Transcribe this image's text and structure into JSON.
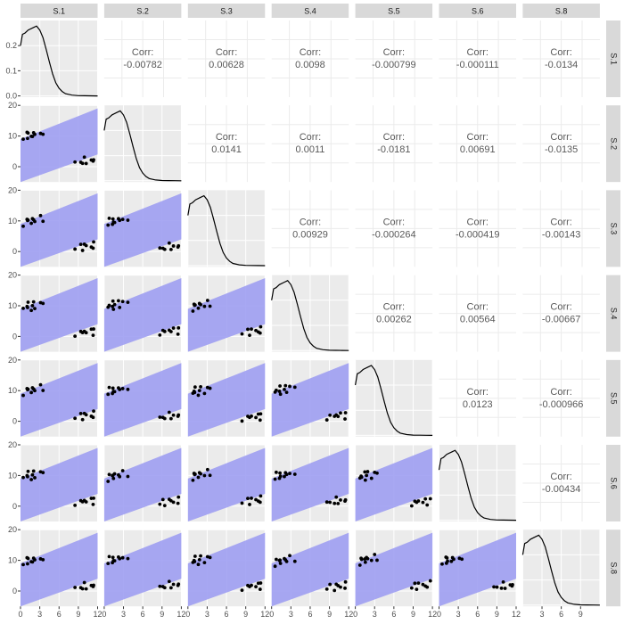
{
  "chart_data": {
    "type": "scatter-matrix",
    "variables": [
      "S.1",
      "S.2",
      "S.3",
      "S.4",
      "S.5",
      "S.6",
      "S.8"
    ],
    "corr_label": "Corr:",
    "correlations": [
      {
        "row": "S.1",
        "col": "S.2",
        "value": "-0.00782"
      },
      {
        "row": "S.1",
        "col": "S.3",
        "value": "0.00628"
      },
      {
        "row": "S.1",
        "col": "S.4",
        "value": "0.0098"
      },
      {
        "row": "S.1",
        "col": "S.5",
        "value": "-0.000799"
      },
      {
        "row": "S.1",
        "col": "S.6",
        "value": "-0.000111"
      },
      {
        "row": "S.1",
        "col": "S.8",
        "value": "-0.0134"
      },
      {
        "row": "S.2",
        "col": "S.3",
        "value": "0.0141"
      },
      {
        "row": "S.2",
        "col": "S.4",
        "value": "0.0011"
      },
      {
        "row": "S.2",
        "col": "S.5",
        "value": "-0.0181"
      },
      {
        "row": "S.2",
        "col": "S.6",
        "value": "0.00691"
      },
      {
        "row": "S.2",
        "col": "S.8",
        "value": "-0.0135"
      },
      {
        "row": "S.3",
        "col": "S.4",
        "value": "0.00929"
      },
      {
        "row": "S.3",
        "col": "S.5",
        "value": "-0.000264"
      },
      {
        "row": "S.3",
        "col": "S.6",
        "value": "-0.000419"
      },
      {
        "row": "S.3",
        "col": "S.8",
        "value": "-0.00143"
      },
      {
        "row": "S.4",
        "col": "S.5",
        "value": "0.00262"
      },
      {
        "row": "S.4",
        "col": "S.6",
        "value": "0.00564"
      },
      {
        "row": "S.4",
        "col": "S.8",
        "value": "-0.00667"
      },
      {
        "row": "S.5",
        "col": "S.6",
        "value": "0.0123"
      },
      {
        "row": "S.5",
        "col": "S.8",
        "value": "-0.000966"
      },
      {
        "row": "S.6",
        "col": "S.8",
        "value": "-0.00434"
      }
    ],
    "x_ticks": [
      "0",
      "3",
      "6",
      "9",
      "12"
    ],
    "x_tick_values": [
      0,
      3,
      6,
      9,
      12
    ],
    "x_ticks_last": [
      "3",
      "6",
      "9"
    ],
    "x_tick_values_last": [
      3,
      6,
      9
    ],
    "y_ticks": [
      "0",
      "10",
      "20"
    ],
    "y_tick_values": [
      0,
      10,
      20
    ],
    "y_ticks_density": [
      "0.0",
      "0.1",
      "0.2"
    ],
    "y_tick_values_density": [
      0.0,
      0.1,
      0.2
    ],
    "xlim": [
      0,
      12
    ],
    "ylim": [
      -5,
      20
    ],
    "density_ylim": [
      -0.005,
      0.3
    ],
    "band": {
      "lower": [
        [
          0,
          -5
        ],
        [
          12,
          4
        ]
      ],
      "upper": [
        [
          0,
          9
        ],
        [
          12,
          19
        ]
      ]
    },
    "band_color": "#9f9ff2",
    "density_curve": [
      [
        0.0,
        0.2
      ],
      [
        0.3,
        0.245
      ],
      [
        0.7,
        0.25
      ],
      [
        1.2,
        0.262
      ],
      [
        2.0,
        0.272
      ],
      [
        2.5,
        0.278
      ],
      [
        3.0,
        0.262
      ],
      [
        3.5,
        0.232
      ],
      [
        4.0,
        0.185
      ],
      [
        4.5,
        0.135
      ],
      [
        5.0,
        0.088
      ],
      [
        5.5,
        0.052
      ],
      [
        6.0,
        0.03
      ],
      [
        6.5,
        0.017
      ],
      [
        7.0,
        0.009
      ],
      [
        8.0,
        0.003
      ],
      [
        9.0,
        0.001
      ],
      [
        10.0,
        0.0005
      ],
      [
        11.0,
        0.0002
      ],
      [
        12.0,
        0.0
      ]
    ],
    "points": [
      [
        0.6,
        8.8
      ],
      [
        0.9,
        10.5
      ],
      [
        1.1,
        9.6
      ],
      [
        1.3,
        10.8
      ],
      [
        1.5,
        9.2
      ],
      [
        1.8,
        10.2
      ],
      [
        2.1,
        10.9
      ],
      [
        2.4,
        9.8
      ],
      [
        3.0,
        11.2
      ],
      [
        3.5,
        10.4
      ],
      [
        8.6,
        0.8
      ],
      [
        9.2,
        1.8
      ],
      [
        9.6,
        0.9
      ],
      [
        10.0,
        2.4
      ],
      [
        10.4,
        1.4
      ],
      [
        10.9,
        2.0
      ],
      [
        11.3,
        1.1
      ],
      [
        11.5,
        2.6
      ]
    ],
    "grid": true,
    "panel_background": "#ebebeb",
    "strip_background": "#d9d9d9"
  }
}
